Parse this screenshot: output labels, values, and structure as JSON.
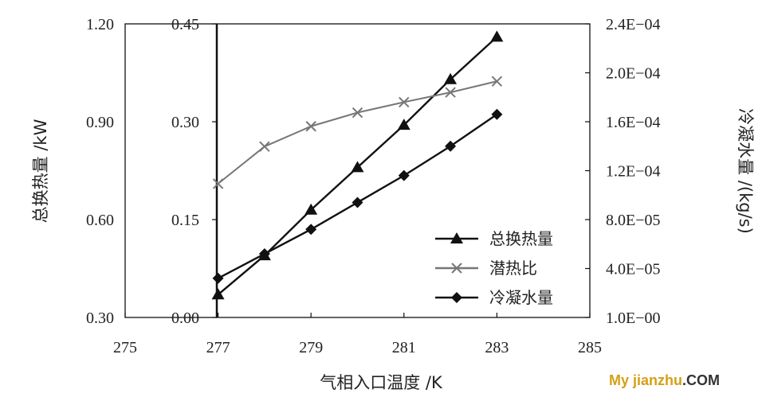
{
  "chart_data": {
    "type": "line",
    "xlabel": "气相入口温度 /K",
    "ylabel_left_outer": "总换热量 /kW",
    "ylabel_right": "冷凝水量 /(kg/s)",
    "x_ticks": [
      "275",
      "277",
      "279",
      "281",
      "283",
      "285"
    ],
    "xlim": [
      275,
      285
    ],
    "y_left_outer_ticks": [
      "0.30",
      "0.60",
      "0.90",
      "1.20"
    ],
    "y_left_outer_lim": [
      0.3,
      1.2
    ],
    "y_left_inner_ticks": [
      "0.00",
      "0.15",
      "0.30",
      "0.45"
    ],
    "y_left_inner_lim": [
      0.0,
      0.45
    ],
    "y_right_ticks": [
      "1.0E−00",
      "4.0E−05",
      "8.0E−05",
      "1.2E−04",
      "1.6E−04",
      "2.0E−04",
      "2.4E−04"
    ],
    "y_right_lim": [
      0.0,
      0.00024
    ],
    "series": [
      {
        "name": "总换热量",
        "axis": "left_outer",
        "marker": "triangle",
        "color": "#111111",
        "x": [
          277,
          278,
          279,
          280,
          281,
          282,
          283
        ],
        "values": [
          0.37,
          0.49,
          0.63,
          0.76,
          0.89,
          1.03,
          1.16
        ]
      },
      {
        "name": "潜热比",
        "axis": "left_inner",
        "marker": "x",
        "color": "#777777",
        "x": [
          277,
          278,
          279,
          280,
          281,
          282,
          283
        ],
        "values": [
          0.205,
          0.262,
          0.293,
          0.314,
          0.33,
          0.345,
          0.362
        ]
      },
      {
        "name": "冷凝水量",
        "axis": "right",
        "marker": "diamond",
        "color": "#111111",
        "x": [
          277,
          278,
          279,
          280,
          281,
          282,
          283
        ],
        "values": [
          3.2e-05,
          5.2e-05,
          7.2e-05,
          9.4e-05,
          0.000116,
          0.00014,
          0.000166
        ]
      }
    ],
    "legend_position": "bottom-right",
    "grid": false
  },
  "watermark": {
    "part1": "My jianzhu",
    "part2": ".COM"
  }
}
